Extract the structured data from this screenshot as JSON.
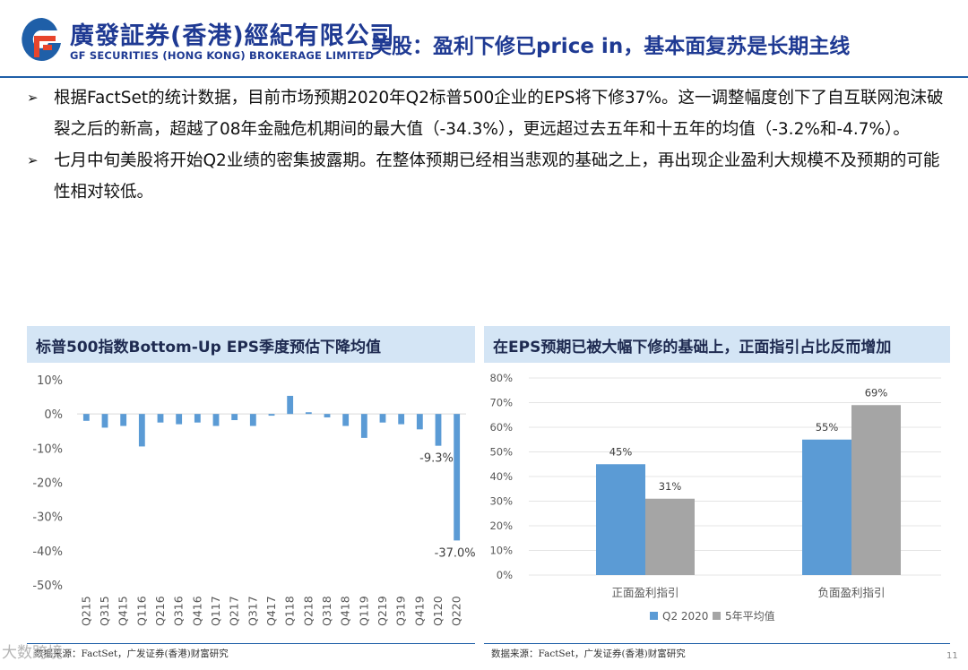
{
  "header": {
    "logo_cn": "廣發証券(香港)經紀有限公司",
    "logo_en": "GF SECURITIES (HONG KONG) BROKERAGE LIMITED",
    "title": "美股：盈利下修已price in，基本面复苏是长期主线",
    "brand_color": "#1f3a93"
  },
  "bullets": [
    "根据FactSet的统计数据，目前市场预期2020年Q2标普500企业的EPS将下修37%。这一调整幅度创下了自互联网泡沫破裂之后的新高，超越了08年金融危机期间的最大值（-34.3%），更远超过去五年和十五年的均值（-3.2%和-4.7%）。",
    "七月中旬美股将开始Q2业绩的密集披露期。在整体预期已经相当悲观的基础之上，再出现企业盈利大规模不及预期的可能性相对较低。"
  ],
  "left_panel": {
    "title": "标普500指数Bottom-Up EPS季度预估下降均值",
    "source": "数据来源：FactSet，广发证券(香港)财富研究"
  },
  "right_panel": {
    "title": "在EPS预期已被大幅下修的基础上，正面指引占比反而增加",
    "source": "数据来源：FactSet，广发证券(香港)财富研究"
  },
  "page_number": "11",
  "watermark": "大数跨境",
  "chart_data": [
    {
      "type": "bar",
      "categories": [
        "Q215",
        "Q315",
        "Q415",
        "Q116",
        "Q216",
        "Q316",
        "Q416",
        "Q117",
        "Q217",
        "Q317",
        "Q417",
        "Q118",
        "Q218",
        "Q318",
        "Q418",
        "Q119",
        "Q219",
        "Q319",
        "Q419",
        "Q120",
        "Q220"
      ],
      "values": [
        -2.0,
        -4.0,
        -3.5,
        -9.5,
        -2.5,
        -3.0,
        -2.5,
        -3.5,
        -1.8,
        -3.5,
        -0.5,
        5.3,
        0.5,
        -1.0,
        -3.5,
        -7.0,
        -2.5,
        -3.0,
        -4.5,
        -9.3,
        -37.0
      ],
      "ylim": [
        -50,
        10
      ],
      "yticks": [
        "10%",
        "0%",
        "-10%",
        "-20%",
        "-30%",
        "-40%",
        "-50%"
      ],
      "data_labels": {
        "Q120": "-9.3%",
        "Q220": "-37.0%"
      },
      "color": "#5b9bd5"
    },
    {
      "type": "bar",
      "categories": [
        "正面盈利指引",
        "负面盈利指引"
      ],
      "series": [
        {
          "name": "Q2 2020",
          "values": [
            45,
            55
          ],
          "color": "#5b9bd5"
        },
        {
          "name": "5年平均值",
          "values": [
            31,
            69
          ],
          "color": "#a5a5a5"
        }
      ],
      "data_labels": [
        [
          "45%",
          "55%"
        ],
        [
          "31%",
          "69%"
        ]
      ],
      "ylim": [
        0,
        80
      ],
      "yticks": [
        "80%",
        "70%",
        "60%",
        "50%",
        "40%",
        "30%",
        "20%",
        "10%",
        "0%"
      ]
    }
  ]
}
